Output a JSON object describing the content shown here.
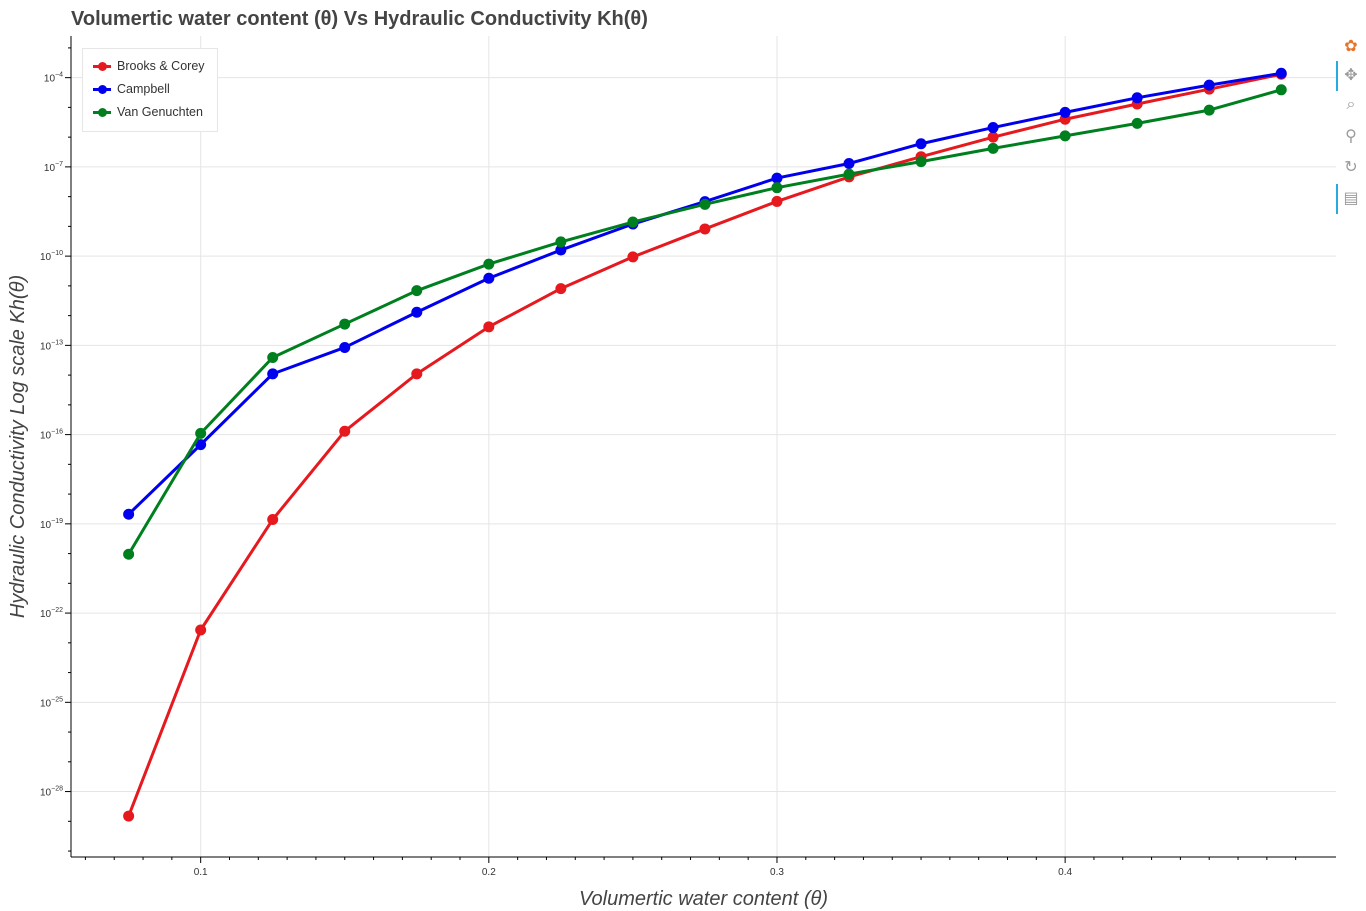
{
  "chart_data": {
    "type": "line",
    "title": "Volumertic water content (θ) Vs Hydraulic Conductivity Kh(θ)",
    "xlabel": "Volumertic water content (θ)",
    "ylabel": "Hydraulic Conductivity Log scale Kh(θ)",
    "x_scale": "linear",
    "y_scale": "log",
    "xlim": [
      0.055,
      0.494
    ],
    "ylim_exponent": [
      -30.2,
      -2.6
    ],
    "x_ticks": [
      0.1,
      0.2,
      0.3,
      0.4
    ],
    "x_tick_labels": [
      "0.1",
      "0.2",
      "0.3",
      "0.4"
    ],
    "y_tick_exponents": [
      -28,
      -25,
      -22,
      -19,
      -16,
      -13,
      -10,
      -7,
      -4
    ],
    "grid": true,
    "legend_position": "top-left",
    "x": [
      0.075,
      0.1,
      0.125,
      0.15,
      0.175,
      0.2,
      0.225,
      0.25,
      0.275,
      0.3,
      0.325,
      0.35,
      0.375,
      0.4,
      0.425,
      0.45,
      0.475
    ],
    "series": [
      {
        "name": "Brooks & Corey",
        "color": "#e6191e",
        "values": [
          1.5e-29,
          2.7e-23,
          1.4e-19,
          1.3e-16,
          1.1e-14,
          4.2e-13,
          8.1e-12,
          9.4e-11,
          8.2e-10,
          6.9e-09,
          4.6e-08,
          2.2e-07,
          1e-06,
          4e-06,
          1.3e-05,
          4.1e-05,
          0.00013
        ]
      },
      {
        "name": "Campbell",
        "color": "#0000ee",
        "values": [
          2.1e-19,
          4.6e-17,
          1.1e-14,
          8.5e-14,
          1.3e-12,
          1.8e-11,
          1.6e-10,
          1.2e-09,
          6.8e-09,
          4.2e-08,
          1.3e-07,
          6e-07,
          2.1e-06,
          6.8e-06,
          2.1e-05,
          5.6e-05,
          0.00014
        ]
      },
      {
        "name": "Van Genuchten",
        "color": "#007f1f",
        "values": [
          9.5e-21,
          1.1e-16,
          3.9e-14,
          5.2e-13,
          6.9e-12,
          5.4e-11,
          3e-10,
          1.4e-09,
          5.5e-09,
          2e-08,
          5.7e-08,
          1.5e-07,
          4.2e-07,
          1.1e-06,
          2.9e-06,
          8.1e-06,
          3.9e-05
        ]
      }
    ]
  },
  "toolbar": {
    "tools": [
      {
        "icon": "bokeh-logo-icon",
        "glyph": "✿",
        "color": "#e8742b"
      },
      {
        "icon": "pan-icon",
        "glyph": "✥",
        "color": "#9b9b9b"
      },
      {
        "icon": "box-zoom-icon",
        "glyph": "⌕",
        "color": "#9b9b9b"
      },
      {
        "icon": "wheel-zoom-icon",
        "glyph": "⚲",
        "color": "#9b9b9b"
      },
      {
        "icon": "reset-icon",
        "glyph": "↻",
        "color": "#9b9b9b"
      },
      {
        "icon": "hover-icon",
        "glyph": "▤",
        "color": "#9b9b9b"
      }
    ]
  }
}
